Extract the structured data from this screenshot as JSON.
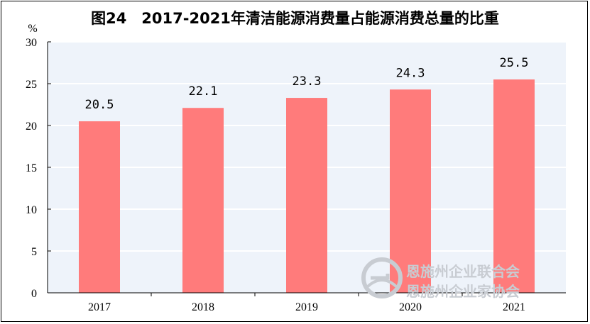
{
  "chart_data": {
    "type": "bar",
    "title": "图24　2017-2021年清洁能源消费量占能源消费总量的比重",
    "ylabel": "%",
    "xlabel": "",
    "categories": [
      "2017",
      "2018",
      "2019",
      "2020",
      "2021"
    ],
    "values": [
      20.5,
      22.1,
      23.3,
      24.3,
      25.5
    ],
    "data_labels": [
      "20.5",
      "22.1",
      "23.3",
      "24.3",
      "25.5"
    ],
    "ylim": [
      0,
      30
    ],
    "yticks": [
      0,
      5,
      10,
      15,
      20,
      25,
      30
    ],
    "grid": true,
    "legend": "none",
    "colors": {
      "bar": "#ff7b7b",
      "plot_background": "#eef3fa",
      "grid": "#ffffff"
    }
  },
  "watermark": {
    "line1": "恩施州企业联合会",
    "line2": "恩施州企业家协会",
    "icon": "logo-circle-icon"
  }
}
